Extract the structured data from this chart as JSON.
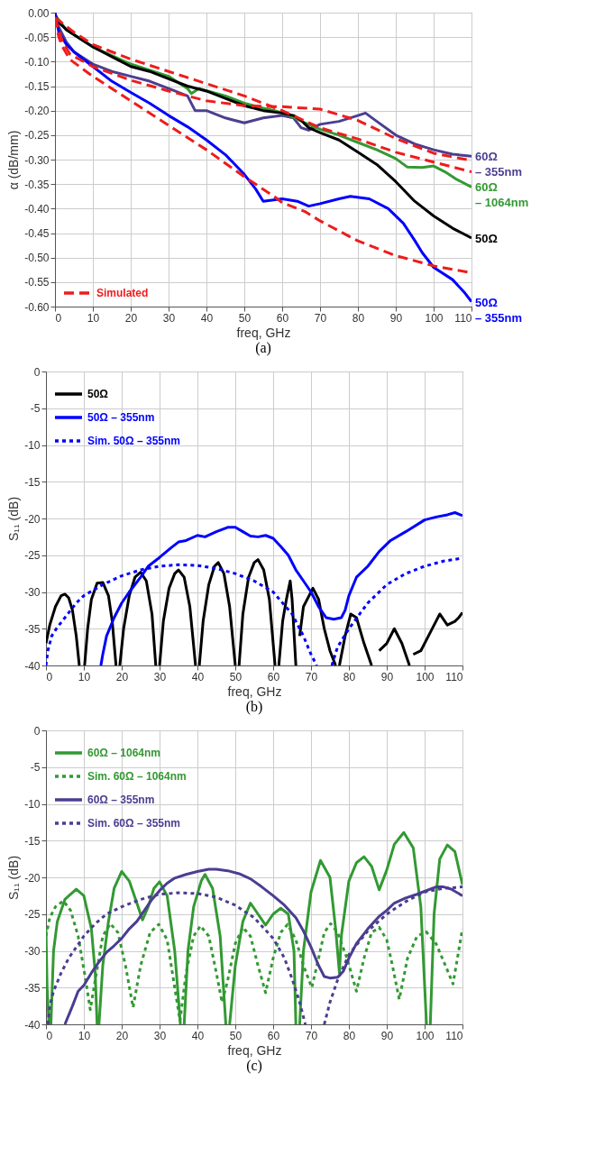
{
  "chart_data": [
    {
      "type": "line",
      "xlabel": "freq, GHz",
      "ylabel": "α (dB/mm)",
      "annotations": [
        "(a)"
      ],
      "xlim": [
        0,
        110
      ],
      "ylim": [
        -0.6,
        0
      ],
      "xticks": [
        0,
        10,
        20,
        30,
        40,
        50,
        60,
        70,
        80,
        90,
        100,
        110
      ],
      "yticks": [
        {
          "value": 0,
          "label": "0.00"
        },
        {
          "value": -0.05,
          "label": "-0.05"
        },
        {
          "value": -0.1,
          "label": "-0.10"
        },
        {
          "value": -0.15,
          "label": "-0.15"
        },
        {
          "value": -0.2,
          "label": "-0.20"
        },
        {
          "value": -0.25,
          "label": "-0.25"
        },
        {
          "value": -0.3,
          "label": "-0.30"
        },
        {
          "value": -0.35,
          "label": "-0.35"
        },
        {
          "value": -0.4,
          "label": "-0.40"
        },
        {
          "value": -0.45,
          "label": "-0.45"
        },
        {
          "value": -0.5,
          "label": "-0.50"
        },
        {
          "value": -0.55,
          "label": "-0.55"
        },
        {
          "value": -0.6,
          "label": "-0.60"
        }
      ],
      "grid": true,
      "legend": "bottom left",
      "series": [
        {
          "name": "60Ω – 355nm",
          "color": "#4b3f8f",
          "x": [
            0,
            1,
            3,
            5,
            10,
            15,
            20,
            25,
            30,
            35,
            37,
            40,
            45,
            50,
            55,
            60,
            63,
            65,
            67,
            70,
            75,
            80,
            82,
            85,
            90,
            95,
            100,
            105,
            110
          ],
          "values": [
            0,
            -0.03,
            -0.06,
            -0.08,
            -0.105,
            -0.12,
            -0.13,
            -0.14,
            -0.155,
            -0.17,
            -0.2,
            -0.2,
            -0.215,
            -0.225,
            -0.215,
            -0.21,
            -0.215,
            -0.235,
            -0.24,
            -0.228,
            -0.222,
            -0.21,
            -0.205,
            -0.222,
            -0.25,
            -0.268,
            -0.28,
            -0.289,
            -0.293
          ]
        },
        {
          "name": "60Ω – 1064nm",
          "color": "#339933",
          "x": [
            0,
            3,
            10,
            20,
            30,
            35,
            36,
            38,
            45,
            50,
            55,
            58,
            62,
            66,
            70,
            75,
            80,
            85,
            90,
            93,
            97,
            100,
            103,
            106,
            110
          ],
          "values": [
            -0.005,
            -0.035,
            -0.07,
            -0.105,
            -0.13,
            -0.155,
            -0.165,
            -0.155,
            -0.17,
            -0.185,
            -0.195,
            -0.2,
            -0.21,
            -0.225,
            -0.238,
            -0.25,
            -0.265,
            -0.28,
            -0.298,
            -0.315,
            -0.316,
            -0.313,
            -0.325,
            -0.34,
            -0.356
          ]
        },
        {
          "name": "50Ω",
          "color": "#000000",
          "x": [
            0,
            1,
            3,
            5,
            10,
            15,
            20,
            25,
            30,
            35,
            40,
            45,
            50,
            55,
            60,
            63,
            65,
            67,
            70,
            75,
            80,
            85,
            90,
            95,
            100,
            105,
            110
          ],
          "values": [
            -0.005,
            -0.02,
            -0.035,
            -0.045,
            -0.07,
            -0.09,
            -0.11,
            -0.12,
            -0.135,
            -0.15,
            -0.16,
            -0.175,
            -0.19,
            -0.2,
            -0.205,
            -0.21,
            -0.22,
            -0.235,
            -0.245,
            -0.26,
            -0.285,
            -0.31,
            -0.345,
            -0.385,
            -0.415,
            -0.44,
            -0.46
          ]
        },
        {
          "name": "50Ω – 355nm",
          "color": "#0000ff",
          "x": [
            0,
            1,
            3,
            5,
            10,
            15,
            20,
            25,
            30,
            35,
            40,
            45,
            50,
            53,
            55,
            60,
            64,
            67,
            70,
            75,
            78,
            83,
            88,
            92,
            95,
            97,
            100,
            105,
            108,
            110
          ],
          "values": [
            0,
            -0.04,
            -0.065,
            -0.08,
            -0.11,
            -0.14,
            -0.163,
            -0.185,
            -0.21,
            -0.233,
            -0.26,
            -0.29,
            -0.33,
            -0.36,
            -0.385,
            -0.38,
            -0.385,
            -0.395,
            -0.39,
            -0.38,
            -0.375,
            -0.38,
            -0.4,
            -0.43,
            -0.465,
            -0.49,
            -0.52,
            -0.545,
            -0.57,
            -0.59
          ]
        },
        {
          "name": "Simulated",
          "color": "#ee1c1c",
          "line_style": "dashed",
          "x": [
            0,
            5,
            10,
            20,
            30,
            40,
            50,
            60,
            70,
            80,
            90,
            100,
            110
          ],
          "values": [
            -0.01,
            -0.04,
            -0.065,
            -0.095,
            -0.12,
            -0.145,
            -0.17,
            -0.2,
            -0.235,
            -0.258,
            -0.285,
            -0.305,
            -0.325
          ]
        },
        {
          "color": "#ee1c1c",
          "line_style": "dashed",
          "x": [
            0,
            2,
            4,
            10,
            20,
            30,
            40,
            50,
            60,
            70,
            80,
            90,
            100,
            110
          ],
          "values": [
            -0.01,
            -0.06,
            -0.085,
            -0.11,
            -0.138,
            -0.16,
            -0.18,
            -0.19,
            -0.192,
            -0.197,
            -0.22,
            -0.257,
            -0.287,
            -0.302
          ]
        },
        {
          "color": "#ee1c1c",
          "line_style": "dashed",
          "x": [
            0,
            1,
            2,
            4,
            10,
            20,
            30,
            40,
            50,
            58,
            60,
            66,
            70,
            80,
            90,
            100,
            110
          ],
          "values": [
            -0.01,
            -0.05,
            -0.07,
            -0.096,
            -0.13,
            -0.18,
            -0.23,
            -0.28,
            -0.335,
            -0.376,
            -0.388,
            -0.406,
            -0.425,
            -0.466,
            -0.496,
            -0.517,
            -0.531
          ]
        }
      ]
    },
    {
      "type": "line",
      "xlabel": "freq, GHz",
      "ylabel": "S₁₁ (dB)",
      "annotations": [
        "(b)"
      ],
      "xlim": [
        0,
        110
      ],
      "ylim": [
        -40,
        0
      ],
      "xticks": [
        0,
        10,
        20,
        30,
        40,
        50,
        60,
        70,
        80,
        90,
        100,
        110
      ],
      "yticks": [
        0,
        -5,
        -10,
        -15,
        -20,
        -25,
        -30,
        -35,
        -40
      ],
      "grid": true,
      "legend": "top left",
      "series": [
        {
          "name": "50Ω",
          "color": "#000000",
          "x": [
            0,
            1,
            2.5,
            4,
            5,
            6,
            7,
            8,
            8.8,
            9.5,
            10.2,
            11,
            12,
            13.5,
            15,
            16.5,
            17.5,
            18.5,
            19,
            19.5,
            20.5,
            22,
            23.5,
            25,
            26.5,
            28,
            29,
            29.5,
            30,
            31,
            32.5,
            34,
            35,
            36.5,
            38,
            39.5,
            40,
            40.5,
            41.5,
            43,
            44.5,
            45.5,
            47,
            48.5,
            50,
            50.5,
            51,
            52,
            53.5,
            55,
            56,
            57.5,
            59,
            60.5,
            61,
            61.5,
            62.5,
            63.5,
            64.5,
            65,
            66,
            66.5,
            67,
            68,
            69,
            70.5,
            72,
            73.5,
            75,
            76.5,
            77,
            77.5,
            79,
            80.5,
            82,
            84,
            86,
            87,
            88,
            90,
            92,
            94,
            96,
            96.5,
            97,
            99,
            101,
            103,
            104,
            106,
            108,
            109,
            110
          ],
          "values": [
            -37,
            -34.5,
            -32,
            -30.5,
            -30.3,
            -30.8,
            -32.5,
            -36,
            -40,
            null,
            -40,
            -35,
            -31,
            -28.8,
            -28.7,
            -30.5,
            -34,
            -40,
            null,
            -40,
            -35,
            -30.5,
            -28,
            -27.3,
            -28.5,
            -33,
            -40,
            null,
            -40,
            -34,
            -29.5,
            -27.5,
            -27,
            -28,
            -32,
            -40,
            null,
            -40,
            -34,
            -29,
            -26.5,
            -26,
            -27.5,
            -32,
            -40,
            null,
            -40,
            -33,
            -28,
            -26,
            -25.6,
            -27,
            -31,
            -40,
            null,
            -40,
            -34,
            -31,
            -28.5,
            -31,
            -40,
            null,
            -36,
            -32,
            -31,
            -29.5,
            -31,
            -35,
            -38,
            -40,
            null,
            -40,
            -36,
            -33,
            -33.5,
            -37,
            -40,
            null,
            -38,
            -37,
            -35,
            -37,
            -40,
            null,
            -38.5,
            -38,
            -36,
            -34,
            -33,
            -34.5,
            -34,
            -33.5,
            -32.8
          ]
        },
        {
          "name": "50Ω – 355nm",
          "color": "#0000ff",
          "x": [
            14.5,
            15,
            16,
            18,
            20,
            22,
            25,
            27,
            30,
            33,
            35,
            37,
            40,
            42,
            45,
            48,
            50,
            52,
            54,
            56,
            58,
            60,
            62,
            64,
            66,
            68,
            70,
            72,
            74,
            76,
            78,
            79,
            80,
            82,
            85,
            88,
            91,
            95,
            100,
            103,
            106,
            108,
            110
          ],
          "values": [
            -40,
            -38.5,
            -36,
            -33.5,
            -31.5,
            -30,
            -28,
            -26.5,
            -25.3,
            -24,
            -23.2,
            -23,
            -22.3,
            -22.5,
            -21.8,
            -21.2,
            -21.2,
            -21.8,
            -22.4,
            -22.5,
            -22.3,
            -22.7,
            -23.8,
            -25,
            -27,
            -28.5,
            -30,
            -32,
            -33.5,
            -33.7,
            -33.5,
            -32.5,
            -30.5,
            -28,
            -26.5,
            -24.5,
            -23,
            -21.8,
            -20.2,
            -19.8,
            -19.5,
            -19.2,
            -19.6
          ]
        },
        {
          "name": "Sim. 50Ω – 355nm",
          "color": "#0000ff",
          "line_style": "dotted",
          "x": [
            0,
            0.5,
            1.5,
            3,
            5,
            8,
            10,
            15,
            20,
            25,
            30,
            35,
            40,
            45,
            50,
            55,
            60,
            65,
            68,
            70,
            71.5,
            73,
            75.5,
            77,
            80,
            85,
            90,
            95,
            100,
            105,
            110
          ],
          "values": [
            -40,
            -38,
            -36,
            -34.8,
            -33.5,
            -31.5,
            -30.5,
            -29,
            -27.8,
            -27,
            -26.5,
            -26.3,
            -26.4,
            -26.8,
            -27.5,
            -28.5,
            -30,
            -33,
            -36,
            -38.5,
            -40,
            null,
            -40,
            -37.5,
            -35,
            -31.5,
            -29,
            -27.5,
            -26.5,
            -25.8,
            -25.4
          ]
        }
      ]
    },
    {
      "type": "line",
      "xlabel": "freq, GHz",
      "ylabel": "S₁₁ (dB)",
      "annotations": [
        "(c)"
      ],
      "xlim": [
        0,
        110
      ],
      "ylim": [
        -40,
        0
      ],
      "xticks": [
        0,
        10,
        20,
        30,
        40,
        50,
        60,
        70,
        80,
        90,
        100,
        110
      ],
      "yticks": [
        0,
        -5,
        -10,
        -15,
        -20,
        -25,
        -30,
        -35,
        -40
      ],
      "grid": true,
      "legend": "top left",
      "series": [
        {
          "name": "60Ω – 1064nm",
          "color": "#339933",
          "x": [
            0,
            0.3,
            0.8,
            1,
            1.3,
            2,
            3,
            5,
            8,
            10,
            12,
            13,
            13.5,
            13.8,
            14,
            15,
            16.5,
            18,
            20,
            22,
            24,
            25.5,
            27,
            28.5,
            30,
            32,
            34,
            35.5,
            36,
            36.5,
            37.5,
            39,
            41,
            42,
            44,
            46,
            47.5,
            48,
            48.5,
            50,
            52,
            54,
            56,
            58,
            60,
            62,
            64,
            65.5,
            66,
            66.5,
            67,
            68,
            70,
            72.5,
            75,
            76.5,
            77.5,
            78,
            80,
            82,
            84,
            86,
            88,
            90,
            92,
            94.5,
            97,
            99,
            100.5,
            101,
            101.5,
            102.5,
            104,
            106,
            108,
            110
          ],
          "values": [
            -27,
            -35,
            -40,
            null,
            -40,
            -30,
            -26,
            -23,
            -21.6,
            -22.5,
            -27,
            -33,
            -40,
            null,
            -40,
            -32,
            -26,
            -21.5,
            -19.2,
            -20.5,
            -23.5,
            -25.8,
            -24,
            -21.5,
            -20.6,
            -22.5,
            -30,
            -40,
            null,
            -40,
            -30,
            -24,
            -20.5,
            -19.6,
            -21.5,
            -28,
            -40,
            null,
            -40,
            -32,
            -26,
            -23.5,
            -25,
            -26.5,
            -25,
            -24.2,
            -25,
            -30,
            -40,
            null,
            -40,
            -30,
            -22,
            -17.7,
            -20,
            -27,
            -33,
            -28,
            -20.5,
            -18,
            -17.2,
            -18.5,
            -21.7,
            -19,
            -15.5,
            -13.9,
            -16,
            -24,
            -40,
            null,
            -40,
            -25,
            -17.5,
            -15.6,
            -16.5,
            -21
          ]
        },
        {
          "name": "Sim. 60Ω – 1064nm",
          "color": "#339933",
          "line_style": "dotted",
          "x": [
            0,
            1,
            2.5,
            4.6,
            6.5,
            8.5,
            10.5,
            11.7,
            13,
            15,
            17,
            19,
            21,
            23,
            25,
            27.5,
            29.8,
            32,
            34,
            35.4,
            37,
            39,
            40.8,
            43,
            45,
            46.5,
            48,
            50,
            52,
            54,
            56,
            58,
            60,
            62,
            63.8,
            66,
            68,
            70.2,
            72,
            73.5,
            75.2,
            77,
            79.5,
            82,
            84,
            86,
            88,
            90,
            91.5,
            93.3,
            95.5,
            98,
            100.4,
            103,
            105.5,
            107.5,
            109,
            110
          ],
          "values": [
            -28,
            -25.5,
            -24,
            -23.2,
            -24.5,
            -28,
            -34,
            -38,
            -34,
            -28,
            -26.3,
            -27.5,
            -32,
            -37.7,
            -32,
            -27.5,
            -26.4,
            -28.5,
            -35,
            -39.5,
            -33,
            -28,
            -26.6,
            -28,
            -33,
            -37,
            -34,
            -29,
            -26.8,
            -28,
            -32,
            -35.7,
            -31,
            -27.5,
            -26.4,
            -28.5,
            -32,
            -35,
            -31,
            -27.5,
            -26.3,
            -27.5,
            -31,
            -35.5,
            -31,
            -27.5,
            -26.8,
            -28.5,
            -32,
            -36.6,
            -31,
            -28,
            -27.4,
            -29,
            -32,
            -34.5,
            -30,
            -27
          ]
        },
        {
          "name": "60Ω  – 355nm",
          "color": "#4a3d91",
          "x": [
            5,
            7,
            8.5,
            10,
            12,
            14,
            16,
            18,
            20,
            22,
            24,
            26,
            28,
            30,
            32,
            34,
            37,
            40,
            43,
            45,
            48,
            51,
            54,
            57,
            60,
            63,
            66,
            68,
            70,
            72,
            73.5,
            75,
            77,
            78.5,
            80,
            82,
            85,
            88,
            90,
            92,
            95,
            98,
            100,
            103,
            105,
            107,
            110
          ],
          "values": [
            -40,
            -37.5,
            -35.5,
            -34.7,
            -33,
            -31.5,
            -30.2,
            -29.3,
            -28.3,
            -27,
            -26,
            -24.5,
            -23,
            -21.8,
            -20.8,
            -20.1,
            -19.6,
            -19.2,
            -18.9,
            -18.9,
            -19.1,
            -19.5,
            -20.2,
            -21.3,
            -22.5,
            -23.8,
            -25.5,
            -27.3,
            -29.5,
            -32,
            -33.5,
            -33.7,
            -33.6,
            -32.8,
            -31,
            -29,
            -27,
            -25.3,
            -24.5,
            -23.5,
            -22.8,
            -22.3,
            -21.9,
            -21.3,
            -21.3,
            -21.6,
            -22.5
          ]
        },
        {
          "name": "Sim. 60Ω – 355nm",
          "color": "#4a3d91",
          "line_style": "dotted",
          "x": [
            0.5,
            1,
            2,
            4,
            6,
            8,
            10,
            13,
            16,
            20,
            25,
            30,
            35,
            40,
            45,
            50,
            55,
            60,
            63,
            65,
            67,
            68.5,
            71,
            73.5,
            75,
            77,
            80,
            85,
            90,
            95,
            100,
            105,
            110
          ],
          "values": [
            -40,
            -37.5,
            -35.5,
            -33,
            -31,
            -29.5,
            -28,
            -26.3,
            -25,
            -24,
            -23,
            -22.3,
            -22.1,
            -22.2,
            -22.7,
            -23.8,
            -25.5,
            -28.3,
            -31,
            -33.8,
            -37,
            -40,
            null,
            -40,
            -37,
            -34,
            -30.5,
            -27.3,
            -25,
            -23.3,
            -22,
            -21.5,
            -21.3
          ]
        }
      ]
    }
  ]
}
